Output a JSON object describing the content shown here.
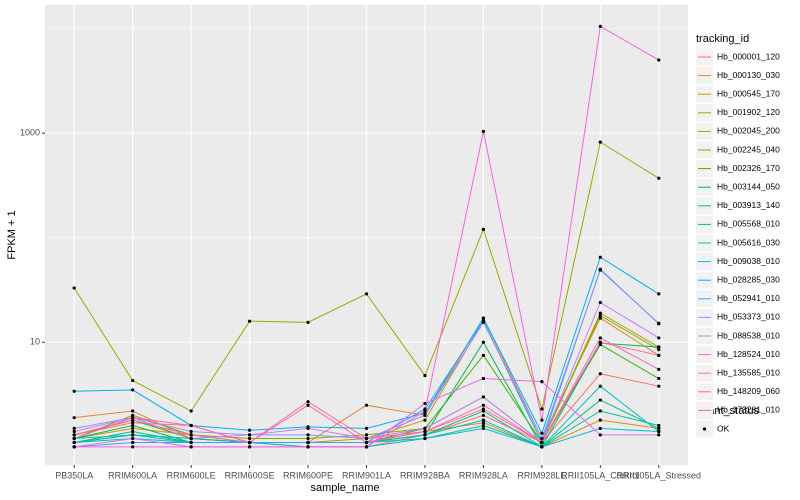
{
  "chart_data": {
    "type": "line",
    "log_y": true,
    "grid": true,
    "x_label": "sample_name",
    "y_label": "FPKM + 1",
    "categories": [
      "PB350LA",
      "RRIM600LA",
      "RRIM600LE",
      "RRIM600SE",
      "RRIM600PE",
      "RRIM901LA",
      "RRIM928BA",
      "RRIM928LA",
      "RRIM928LE",
      "RRII105LA_Control",
      "RRII105LA_Stressed"
    ],
    "ylim": [
      0.67,
      16800
    ],
    "yticks": [
      10,
      1000
    ],
    "y_minor_ticks": [
      100,
      10000
    ],
    "legend_title": "tracking_id",
    "legend_position": "right",
    "point_legend_title": "quant_status",
    "point_levels": [
      "OK"
    ],
    "point_color": "#000000",
    "series": [
      {
        "name": "Hb_000001_120",
        "color": "#F8766D",
        "values": [
          1.3,
          1.7,
          1.6,
          1.1,
          1.0,
          1.0,
          1.3,
          2.0,
          1.1,
          5.0,
          3.8
        ]
      },
      {
        "name": "Hb_000130_030",
        "color": "#EA8331",
        "values": [
          1.9,
          2.2,
          1.2,
          1.1,
          1.1,
          2.5,
          2.0,
          17,
          1.2,
          17,
          7.5
        ]
      },
      {
        "name": "Hb_000545_170",
        "color": "#D89000",
        "values": [
          1.2,
          1.5,
          1.3,
          1.1,
          1.1,
          1.1,
          1.4,
          1.7,
          1.0,
          1.8,
          1.5
        ]
      },
      {
        "name": "Hb_001902_120",
        "color": "#C09B00",
        "values": [
          1.1,
          1.3,
          1.2,
          1.1,
          1.1,
          1.2,
          1.8,
          16,
          1.1,
          19,
          9.0
        ]
      },
      {
        "name": "Hb_002045_200",
        "color": "#A3A500",
        "values": [
          33,
          4.3,
          2.2,
          15.9,
          15.5,
          29,
          4.8,
          120,
          2.3,
          820,
          370
        ]
      },
      {
        "name": "Hb_002245_040",
        "color": "#7CAE00",
        "values": [
          1.2,
          2.0,
          1.3,
          1.2,
          1.2,
          1.3,
          1.5,
          3.0,
          1.1,
          18,
          8.5
        ]
      },
      {
        "name": "Hb_002326_170",
        "color": "#39B600",
        "values": [
          1.3,
          1.8,
          1.2,
          1.1,
          1.1,
          1.1,
          1.5,
          7.5,
          1.1,
          9.5,
          4.5
        ]
      },
      {
        "name": "Hb_003144_050",
        "color": "#00BB4E",
        "values": [
          1.2,
          1.6,
          1.1,
          1.1,
          1.1,
          1.1,
          1.3,
          10,
          1.0,
          9.8,
          9.0
        ]
      },
      {
        "name": "Hb_003913_140",
        "color": "#00BF7D",
        "values": [
          1.1,
          1.4,
          1.1,
          1.1,
          1.1,
          1.1,
          1.3,
          2.2,
          1.0,
          2.8,
          1.5
        ]
      },
      {
        "name": "Hb_005568_010",
        "color": "#00C1A3",
        "values": [
          1.1,
          1.3,
          1.1,
          1.1,
          1.1,
          1.1,
          1.2,
          1.6,
          1.0,
          2.2,
          1.6
        ]
      },
      {
        "name": "Hb_005616_030",
        "color": "#00BFC4",
        "values": [
          1.1,
          1.2,
          1.1,
          1.1,
          1.0,
          1.0,
          1.2,
          1.5,
          1.0,
          3.8,
          1.4
        ]
      },
      {
        "name": "Hb_009038_010",
        "color": "#00BAE0",
        "values": [
          1.2,
          1.3,
          1.2,
          1.1,
          1.1,
          1.1,
          1.3,
          1.8,
          1.0,
          1.5,
          1.4
        ]
      },
      {
        "name": "Hb_028285_030",
        "color": "#00B0F6",
        "values": [
          3.4,
          3.5,
          1.6,
          1.44,
          1.55,
          1.5,
          2.1,
          17,
          1.35,
          65,
          29
        ]
      },
      {
        "name": "Hb_052941_010",
        "color": "#35A2FF",
        "values": [
          1.0,
          1.1,
          1.1,
          1.1,
          1.1,
          1.1,
          2.3,
          16,
          1.1,
          50,
          15
        ]
      },
      {
        "name": "Hb_053373_010",
        "color": "#9590FF",
        "values": [
          1.5,
          1.9,
          1.4,
          1.3,
          1.3,
          1.2,
          2.0,
          15.5,
          1.2,
          49,
          15.2
        ]
      },
      {
        "name": "Hb_088538_010",
        "color": "#C77CFF",
        "values": [
          1.4,
          1.9,
          1.2,
          1.3,
          1.5,
          1.2,
          1.5,
          3.0,
          1.1,
          24,
          11
        ]
      },
      {
        "name": "Hb_128524_010",
        "color": "#E76BF3",
        "values": [
          1.0,
          1.2,
          1.0,
          1.0,
          1.0,
          1.0,
          2.6,
          4.5,
          4.2,
          1.3,
          1.3
        ]
      },
      {
        "name": "Hb_135585_010",
        "color": "#FA62DB",
        "values": [
          1.0,
          1.0,
          1.0,
          1.0,
          1.0,
          1.0,
          2.2,
          1040,
          1.8,
          10500,
          5000
        ]
      },
      {
        "name": "Hb_148209_060",
        "color": "#FF62BC",
        "values": [
          1.2,
          1.9,
          1.6,
          1.1,
          2.5,
          1.1,
          1.4,
          2.5,
          1.1,
          11,
          5.5
        ]
      },
      {
        "name": "Hb_173281_010",
        "color": "#FF6A98",
        "values": [
          1.3,
          1.8,
          1.3,
          1.1,
          2.7,
          1.2,
          1.4,
          2.3,
          1.1,
          10,
          7.5
        ]
      }
    ]
  }
}
